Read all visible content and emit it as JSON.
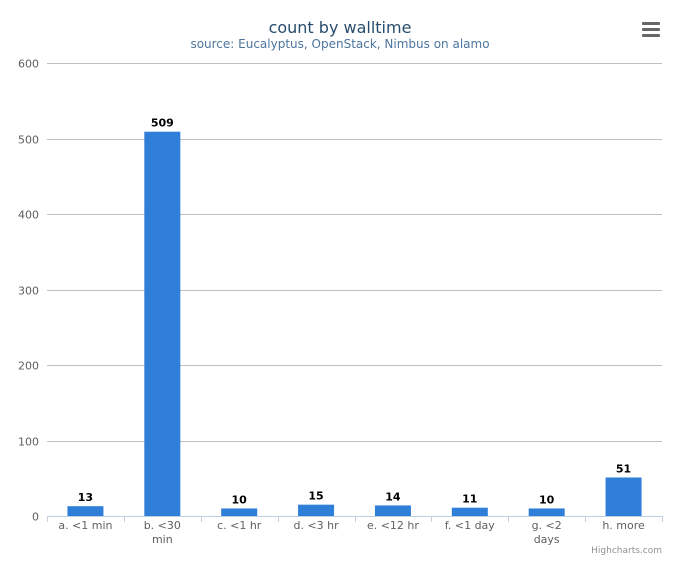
{
  "chart_data": {
    "type": "bar",
    "title": "count by walltime",
    "subtitle": "source: Eucalyptus, OpenStack, Nimbus on alamo",
    "categories": [
      "a. <1 min",
      "b. <30 min",
      "c. <1 hr",
      "d. <3 hr",
      "e. <12 hr",
      "f. <1 day",
      "g. <2 days",
      "h. more"
    ],
    "category_lines": [
      [
        "a. <1 min"
      ],
      [
        "b. <30",
        "min"
      ],
      [
        "c. <1 hr"
      ],
      [
        "d. <3 hr"
      ],
      [
        "e. <12 hr"
      ],
      [
        "f. <1 day"
      ],
      [
        "g. <2",
        "days"
      ],
      [
        "h. more"
      ]
    ],
    "values": [
      13,
      509,
      10,
      15,
      14,
      11,
      10,
      51
    ],
    "ylim": [
      0,
      600
    ],
    "yticks": [
      0,
      100,
      200,
      300,
      400,
      500,
      600
    ],
    "grid": true,
    "legend": "none",
    "bar_color": "#2f7ed8",
    "credits": "Highcharts.com",
    "menu_icon": "hamburger-menu-icon"
  }
}
